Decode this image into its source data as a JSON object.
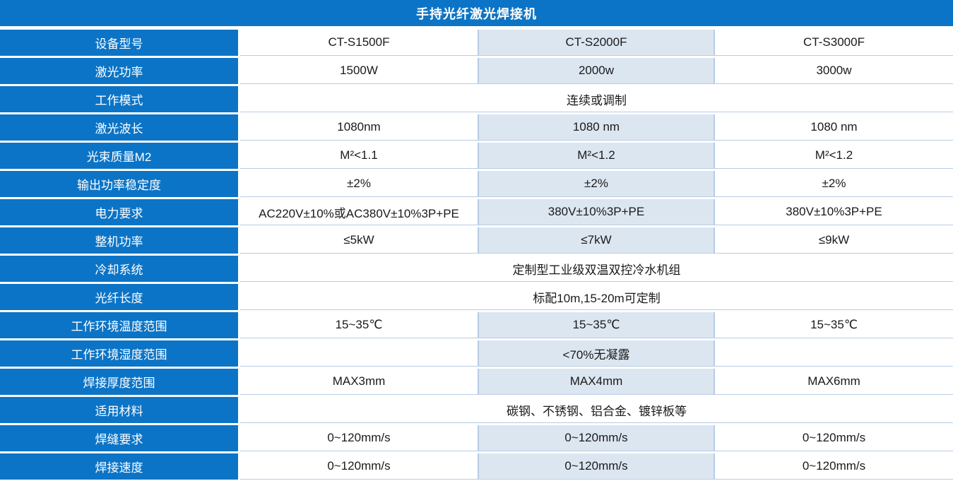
{
  "title": "手持光纤激光焊接机",
  "colors": {
    "primary_blue": "#0C74C6",
    "middle_column_fill": "#DCE6F1",
    "grid_line": "#B8CCE4",
    "title_text": "#ffffff",
    "cell_text": "#1a1a1a"
  },
  "table": {
    "rows": [
      {
        "label": "设备型号",
        "type": "three",
        "cells": [
          "CT-S1500F",
          "CT-S2000F",
          "CT-S3000F"
        ]
      },
      {
        "label": "激光功率",
        "type": "three",
        "cells": [
          "1500W",
          "2000w",
          "3000w"
        ]
      },
      {
        "label": "工作模式",
        "type": "span",
        "value": "连续或调制"
      },
      {
        "label": "激光波长",
        "type": "three",
        "cells": [
          "1080nm",
          "1080 nm",
          "1080 nm"
        ]
      },
      {
        "label": "光束质量M2",
        "type": "three",
        "cells": [
          "M²<1.1",
          "M²<1.2",
          "M²<1.2"
        ]
      },
      {
        "label": "输出功率稳定度",
        "type": "three",
        "cells": [
          "±2%",
          "±2%",
          "±2%"
        ]
      },
      {
        "label": "电力要求",
        "type": "three",
        "cells": [
          "AC220V±10%或AC380V±10%3P+PE",
          "380V±10%3P+PE",
          "380V±10%3P+PE"
        ]
      },
      {
        "label": "整机功率",
        "type": "three",
        "cells": [
          "≤5kW",
          "≤7kW",
          "≤9kW"
        ]
      },
      {
        "label": "冷却系统",
        "type": "span",
        "value": "定制型工业级双温双控冷水机组"
      },
      {
        "label": "光纤长度",
        "type": "span",
        "value": "标配10m,15-20m可定制"
      },
      {
        "label": "工作环境温度范围",
        "type": "three",
        "cells": [
          "15~35℃",
          "15~35℃",
          "15~35℃"
        ]
      },
      {
        "label": "工作环境湿度范围",
        "type": "three",
        "cells": [
          "",
          "<70%无凝露",
          ""
        ]
      },
      {
        "label": "焊接厚度范围",
        "type": "three",
        "cells": [
          "MAX3mm",
          "MAX4mm",
          "MAX6mm"
        ]
      },
      {
        "label": "适用材料",
        "type": "span",
        "value": "碳钢、不锈钢、铝合金、镀锌板等"
      },
      {
        "label": "焊缝要求",
        "type": "three",
        "cells": [
          "0~120mm/s",
          "0~120mm/s",
          "0~120mm/s"
        ]
      },
      {
        "label": "焊接速度",
        "type": "three",
        "cells": [
          "0~120mm/s",
          "0~120mm/s",
          "0~120mm/s"
        ]
      }
    ]
  }
}
